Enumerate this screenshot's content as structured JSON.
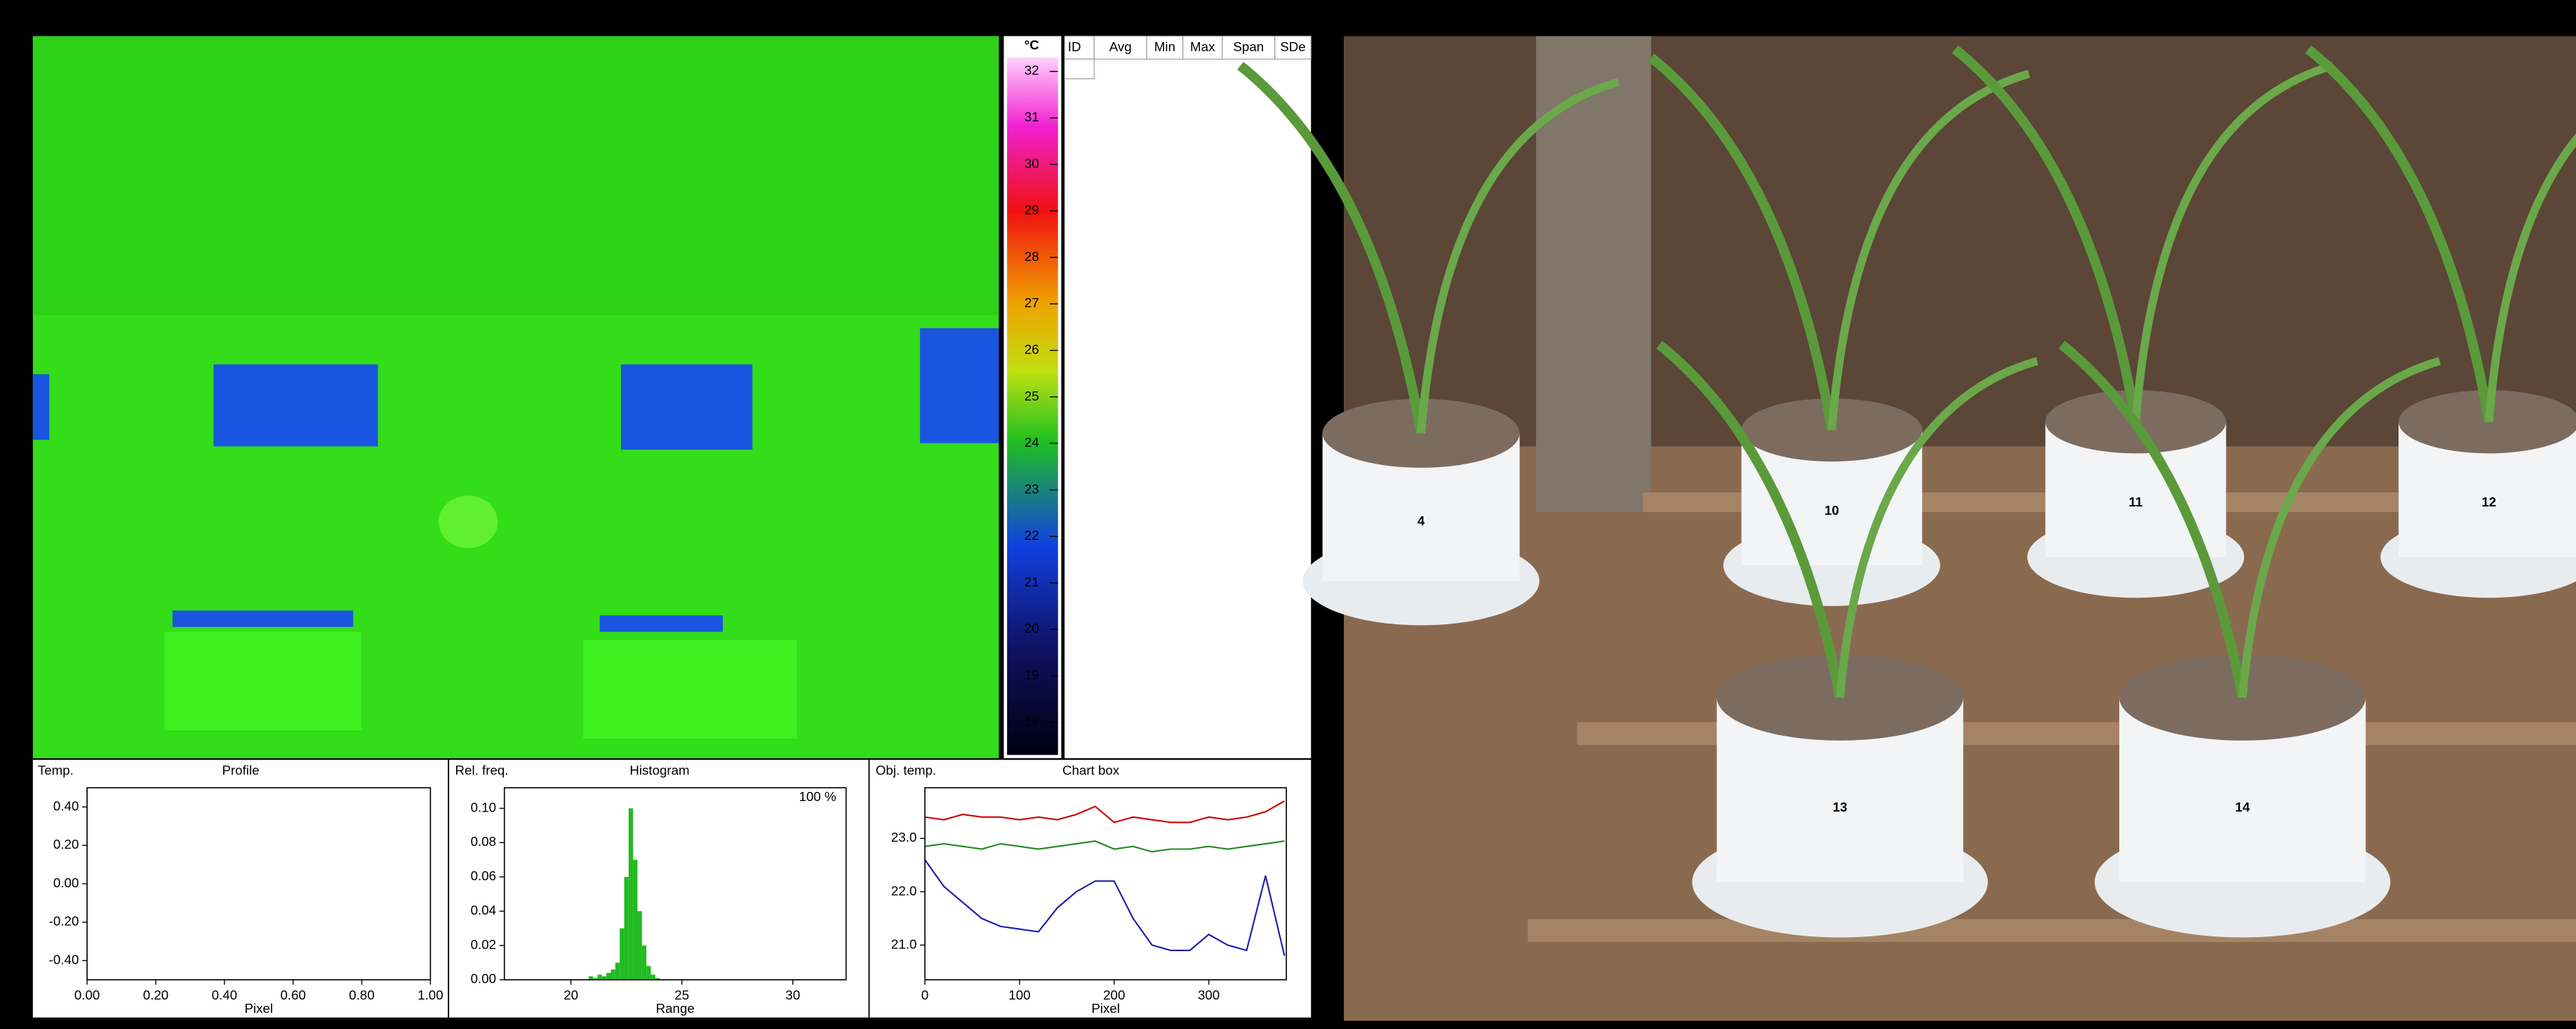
{
  "thermal": {
    "unit": "°C",
    "lim": [
      17.3,
      32.3
    ],
    "ticks": [
      32,
      31,
      30,
      29,
      28,
      27,
      26,
      25,
      24,
      23,
      22,
      21,
      20,
      19,
      18
    ]
  },
  "table": {
    "headers": [
      "ID",
      "Avg",
      "Min",
      "Max",
      "Span",
      "SDe"
    ]
  },
  "panels": [
    {
      "type": "line",
      "title": "Profile",
      "y_label": "Temp.",
      "x_label": "Pixel",
      "xlim": [
        0,
        1
      ],
      "ylim": [
        -0.5,
        0.5
      ],
      "xticks": [
        {
          "value": 0,
          "label": "0.00"
        },
        {
          "value": 0.2,
          "label": "0.20"
        },
        {
          "value": 0.4,
          "label": "0.40"
        },
        {
          "value": 0.6,
          "label": "0.60"
        },
        {
          "value": 0.8,
          "label": "0.80"
        },
        {
          "value": 1,
          "label": "1.00"
        }
      ],
      "yticks": [
        {
          "value": 0.4,
          "label": "0.40"
        },
        {
          "value": 0.2,
          "label": "0.20"
        },
        {
          "value": 0,
          "label": "0.00"
        },
        {
          "value": -0.2,
          "label": "-0.20"
        },
        {
          "value": -0.4,
          "label": "-0.40"
        }
      ]
    },
    {
      "type": "histogram",
      "title": "Histogram",
      "y_label": "Rel. freq.",
      "x_label": "Range",
      "annotation": "100 %",
      "xlim": [
        17,
        32.4
      ],
      "ylim": [
        0,
        0.112
      ],
      "xticks": [
        20,
        25,
        30
      ],
      "yticks": [
        {
          "value": 0.1,
          "label": "0.10"
        },
        {
          "value": 0.08,
          "label": "0.08"
        },
        {
          "value": 0.06,
          "label": "0.06"
        },
        {
          "value": 0.04,
          "label": "0.04"
        },
        {
          "value": 0.02,
          "label": "0.02"
        },
        {
          "value": 0,
          "label": "0.00"
        }
      ],
      "bins": [
        20.8,
        21.0,
        21.2,
        21.4,
        21.6,
        21.8,
        22.0,
        22.2,
        22.4,
        22.6,
        22.8,
        23.0,
        23.2,
        23.4,
        23.6,
        23.8,
        24.0
      ],
      "values": [
        0.002,
        0.001,
        0.003,
        0.002,
        0.004,
        0.006,
        0.01,
        0.03,
        0.06,
        0.1,
        0.07,
        0.04,
        0.02,
        0.008,
        0.003,
        0.001
      ],
      "color": "#22bb22"
    },
    {
      "type": "line",
      "title": "Chart box",
      "y_label": "Obj. temp.",
      "x_label": "Pixel",
      "xlim": [
        0,
        382
      ],
      "ylim": [
        20.35,
        23.95
      ],
      "xticks": [
        0,
        100,
        200,
        300
      ],
      "yticks": [
        {
          "value": 23,
          "label": "23.0"
        },
        {
          "value": 22,
          "label": "22.0"
        },
        {
          "value": 21,
          "label": "21.0"
        }
      ],
      "x": [
        0,
        20,
        40,
        60,
        80,
        100,
        120,
        140,
        160,
        180,
        200,
        220,
        240,
        260,
        280,
        300,
        320,
        340,
        360,
        380
      ],
      "series": [
        {
          "color": "#cc0000",
          "values": [
            23.4,
            23.35,
            23.45,
            23.4,
            23.4,
            23.35,
            23.4,
            23.35,
            23.45,
            23.6,
            23.3,
            23.4,
            23.35,
            23.3,
            23.3,
            23.4,
            23.35,
            23.4,
            23.5,
            23.7
          ]
        },
        {
          "color": "#228822",
          "values": [
            22.85,
            22.9,
            22.85,
            22.8,
            22.9,
            22.85,
            22.8,
            22.85,
            22.9,
            22.95,
            22.8,
            22.85,
            22.75,
            22.8,
            22.8,
            22.85,
            22.8,
            22.85,
            22.9,
            22.95
          ]
        },
        {
          "color": "#1a1aaa",
          "values": [
            22.6,
            22.1,
            21.8,
            21.5,
            21.35,
            21.3,
            21.25,
            21.7,
            22.0,
            22.2,
            22.2,
            21.5,
            21.0,
            20.9,
            20.9,
            21.2,
            21.0,
            20.9,
            22.3,
            20.8
          ]
        }
      ]
    }
  ],
  "photo": {
    "pot_labels": [
      "4",
      "10",
      "11",
      "12",
      "13",
      "14"
    ]
  }
}
